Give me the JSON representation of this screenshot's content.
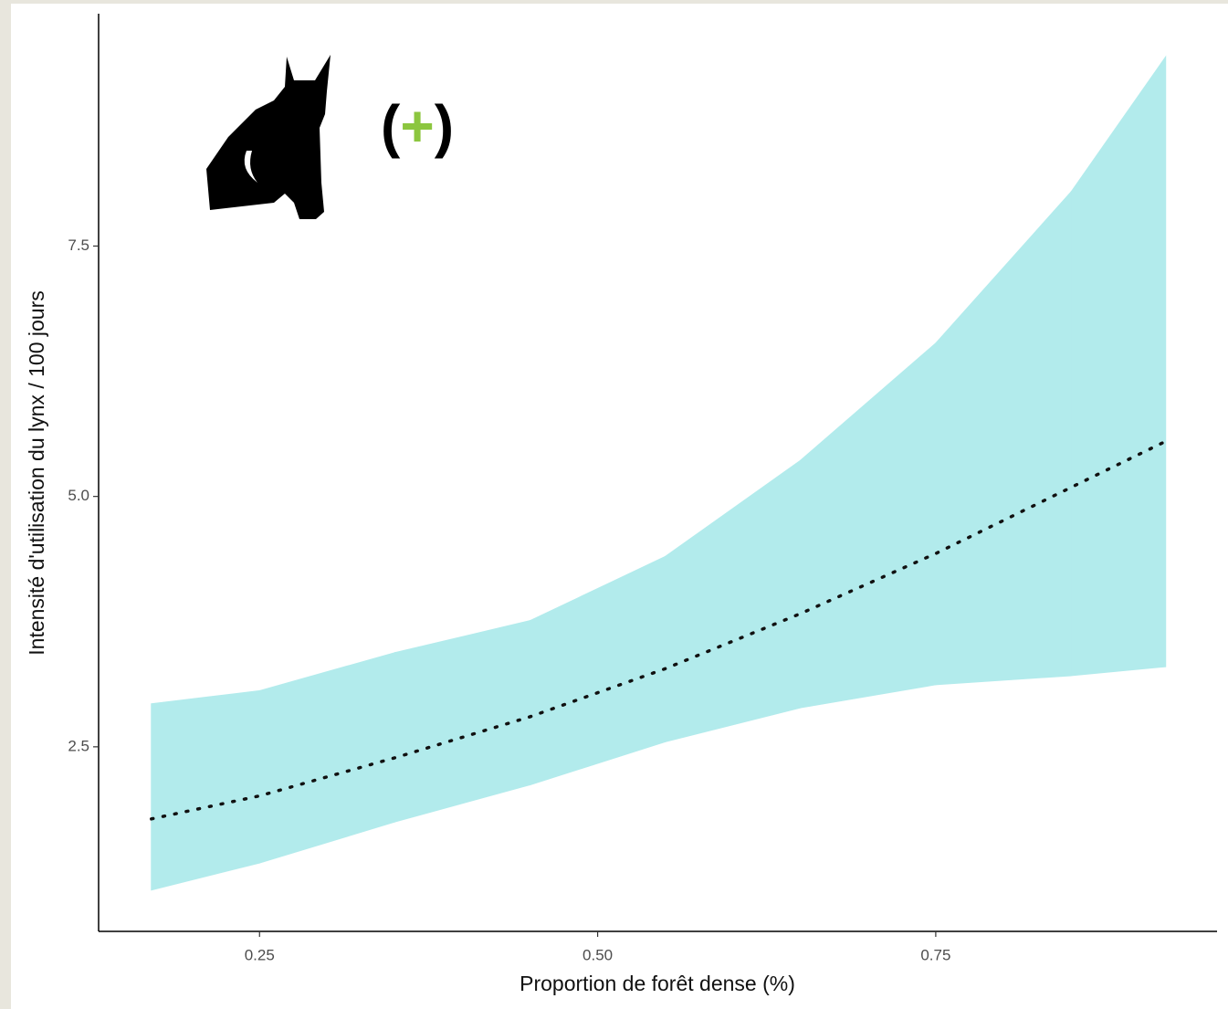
{
  "chart_data": {
    "type": "line",
    "x": [
      0.17,
      0.25,
      0.35,
      0.45,
      0.55,
      0.65,
      0.75,
      0.85,
      0.92
    ],
    "values": [
      1.78,
      2.01,
      2.39,
      2.8,
      3.28,
      3.83,
      4.43,
      5.09,
      5.55
    ],
    "ci_lower": [
      1.07,
      1.34,
      1.75,
      2.12,
      2.55,
      2.89,
      3.12,
      3.21,
      3.3
    ],
    "ci_upper": [
      2.93,
      3.06,
      3.44,
      3.76,
      4.4,
      5.36,
      6.53,
      8.04,
      9.39
    ],
    "color": "#111111",
    "band_color": "#b2ebec",
    "line_style": "dotted",
    "xlim": [
      0.131,
      0.958
    ],
    "ylim": [
      0.657,
      9.82
    ],
    "xticks": [
      0.25,
      {
        "value": 0.5,
        "label": "0.50"
      },
      0.75
    ],
    "yticks": [
      2.5,
      {
        "value": 5,
        "label": "5.0"
      },
      7.5
    ],
    "x_label": "Proportion de forêt dense (%)",
    "y_label": "Intensité d'utilisation du lynx / 100 jours",
    "annotation": [
      "(",
      "+",
      ")"
    ],
    "annotation_sign_color": "#8cc63f",
    "grid": false
  }
}
